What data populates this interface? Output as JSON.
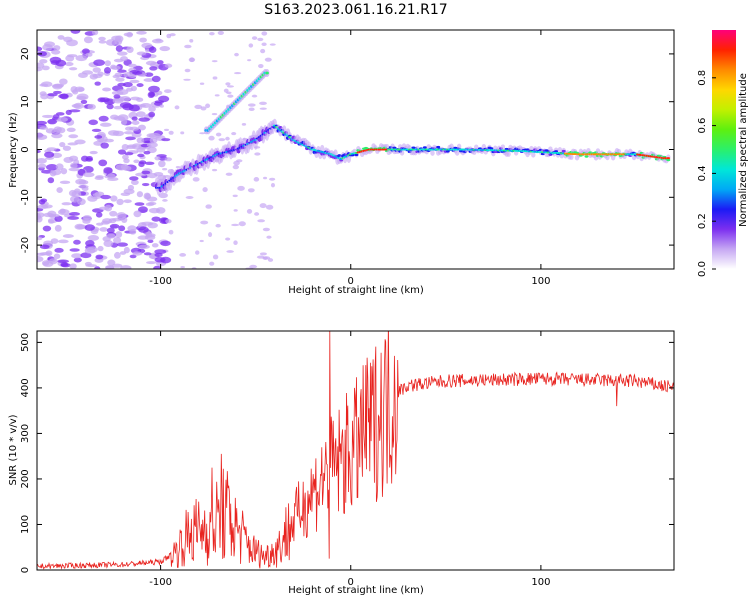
{
  "figure": {
    "title": "S163.2023.061.16.21.R17"
  },
  "colors": {
    "line": "#e8231f",
    "frame": "#000000"
  },
  "chart_data": [
    {
      "type": "heatmap",
      "xlabel": "Height of straight line (km)",
      "ylabel": "Frequency (Hz)",
      "xlim": [
        -165,
        170
      ],
      "ylim": [
        -25,
        25
      ],
      "xticks": [
        "-100",
        "0",
        "100"
      ],
      "yticks": [
        "-20",
        "-10",
        "0",
        "10",
        "20"
      ],
      "colorbar": {
        "label": "Normalized spectral amplitude",
        "range": [
          0,
          1
        ],
        "ticks": [
          "0.0",
          "0.2",
          "0.4",
          "0.6",
          "0.8"
        ],
        "colormap": [
          "#ffffff",
          "#c6a7f3",
          "#7c2ff0",
          "#1b1bf5",
          "#00a9f5",
          "#00e7d8",
          "#2bf06a",
          "#5ef00f",
          "#c2f000",
          "#ffd700",
          "#ff8a00",
          "#ff2200",
          "#ff007a"
        ]
      },
      "ridge": {
        "x": [
          -100,
          -90,
          -80,
          -70,
          -60,
          -50,
          -40,
          -30,
          -20,
          -10,
          -5,
          0,
          10,
          30,
          60,
          90,
          120,
          150,
          165
        ],
        "y": [
          -8,
          -5,
          -3,
          -1,
          0,
          2,
          5,
          2,
          0,
          -1,
          -2,
          -1,
          0,
          0,
          0,
          -0.3,
          -1,
          -1,
          -1.8
        ]
      },
      "branch": {
        "x": [
          -75,
          -65,
          -55,
          -45
        ],
        "y": [
          4,
          8,
          12,
          16
        ]
      }
    },
    {
      "type": "line",
      "xlabel": "Height of straight line (km)",
      "ylabel": "SNR (10 * v/v)",
      "xlim": [
        -165,
        170
      ],
      "ylim": [
        0,
        525
      ],
      "xticks": [
        "-100",
        "0",
        "100"
      ],
      "yticks": [
        "0",
        "100",
        "200",
        "300",
        "400",
        "500"
      ],
      "envelope": {
        "x": [
          -165,
          -120,
          -100,
          -92,
          -85,
          -78,
          -72,
          -66,
          -60,
          -52,
          -45,
          -38,
          -30,
          -22,
          -15,
          -8,
          0,
          8,
          15,
          22,
          30,
          50,
          100,
          150,
          170
        ],
        "y": [
          8,
          12,
          18,
          40,
          80,
          90,
          100,
          125,
          90,
          45,
          30,
          50,
          110,
          160,
          200,
          230,
          260,
          300,
          340,
          385,
          405,
          415,
          420,
          415,
          400
        ]
      },
      "spikes": [
        {
          "x": -11,
          "y": 525
        },
        {
          "x": -11.5,
          "y": 25
        },
        {
          "x": 8,
          "y": 450
        },
        {
          "x": -68,
          "y": 255
        },
        {
          "x": -73,
          "y": 225
        },
        {
          "x": 140,
          "y": 360
        }
      ]
    }
  ]
}
